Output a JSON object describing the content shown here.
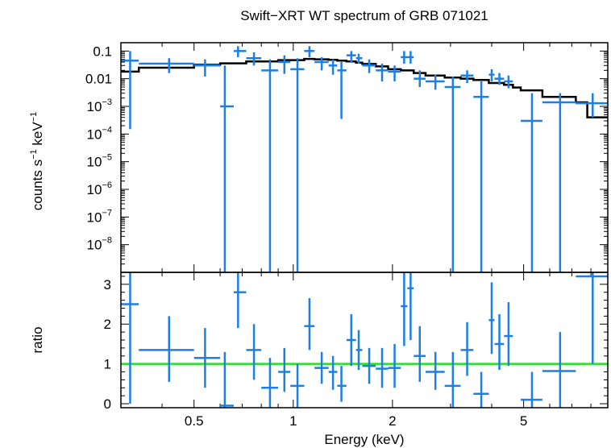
{
  "chart_data": [
    {
      "type": "scatter",
      "title": "Swift−XRT WT spectrum of GRB 071021",
      "ylabel": "counts s⁻¹ keV⁻¹",
      "ylabel_parts": [
        "counts s",
        "−1",
        " keV",
        "−1"
      ],
      "xscale": "log",
      "yscale": "log",
      "xlim": [
        0.3,
        9.0
      ],
      "ylim": [
        1e-09,
        0.2
      ],
      "yticks": [
        {
          "v": 0.1,
          "label": "0.1"
        },
        {
          "v": 0.01,
          "label": "0.01"
        },
        {
          "v": 0.001,
          "base": "10",
          "exp": "−3"
        },
        {
          "v": 0.0001,
          "base": "10",
          "exp": "−4"
        },
        {
          "v": 1e-05,
          "base": "10",
          "exp": "−5"
        },
        {
          "v": 1e-06,
          "base": "10",
          "exp": "−6"
        },
        {
          "v": 1e-07,
          "base": "10",
          "exp": "−7"
        },
        {
          "v": 1e-08,
          "base": "10",
          "exp": "−8"
        }
      ],
      "data_color": "#1e7fe0",
      "model_color": "#000000",
      "points": [
        {
          "x": 0.32,
          "xlo": 0.3,
          "xhi": 0.34,
          "y": 0.045,
          "ylo": 0.00015,
          "yhi": 0.1
        },
        {
          "x": 0.42,
          "xlo": 0.34,
          "xhi": 0.5,
          "y": 0.035,
          "ylo": 0.016,
          "yhi": 0.055
        },
        {
          "x": 0.54,
          "xlo": 0.5,
          "xhi": 0.6,
          "y": 0.03,
          "ylo": 0.012,
          "yhi": 0.05
        },
        {
          "x": 0.62,
          "xlo": 0.6,
          "xhi": 0.66,
          "y": 0.001,
          "ylo": 1e-09,
          "yhi": 0.03
        },
        {
          "x": 0.68,
          "xlo": 0.66,
          "xhi": 0.72,
          "y": 0.1,
          "ylo": 0.06,
          "yhi": 0.15
        },
        {
          "x": 0.76,
          "xlo": 0.72,
          "xhi": 0.8,
          "y": 0.055,
          "ylo": 0.03,
          "yhi": 0.09
        },
        {
          "x": 0.85,
          "xlo": 0.8,
          "xhi": 0.9,
          "y": 0.02,
          "ylo": 1e-09,
          "yhi": 0.05
        },
        {
          "x": 0.94,
          "xlo": 0.9,
          "xhi": 0.98,
          "y": 0.04,
          "ylo": 0.015,
          "yhi": 0.07
        },
        {
          "x": 1.03,
          "xlo": 0.98,
          "xhi": 1.08,
          "y": 0.022,
          "ylo": 1e-09,
          "yhi": 0.055
        },
        {
          "x": 1.12,
          "xlo": 1.08,
          "xhi": 1.16,
          "y": 0.1,
          "ylo": 0.06,
          "yhi": 0.15
        },
        {
          "x": 1.22,
          "xlo": 1.16,
          "xhi": 1.28,
          "y": 0.04,
          "ylo": 0.02,
          "yhi": 0.06
        },
        {
          "x": 1.32,
          "xlo": 1.28,
          "xhi": 1.36,
          "y": 0.03,
          "ylo": 0.014,
          "yhi": 0.05
        },
        {
          "x": 1.4,
          "xlo": 1.36,
          "xhi": 1.45,
          "y": 0.02,
          "ylo": 0.00035,
          "yhi": 0.04
        },
        {
          "x": 1.5,
          "xlo": 1.45,
          "xhi": 1.55,
          "y": 0.07,
          "ylo": 0.04,
          "yhi": 0.1
        },
        {
          "x": 1.58,
          "xlo": 1.55,
          "xhi": 1.62,
          "y": 0.055,
          "ylo": 0.035,
          "yhi": 0.08
        },
        {
          "x": 1.7,
          "xlo": 1.62,
          "xhi": 1.78,
          "y": 0.03,
          "ylo": 0.016,
          "yhi": 0.05
        },
        {
          "x": 1.86,
          "xlo": 1.78,
          "xhi": 1.94,
          "y": 0.02,
          "ylo": 0.008,
          "yhi": 0.035
        },
        {
          "x": 2.03,
          "xlo": 1.94,
          "xhi": 2.12,
          "y": 0.018,
          "ylo": 0.008,
          "yhi": 0.03
        },
        {
          "x": 2.17,
          "xlo": 2.12,
          "xhi": 2.22,
          "y": 0.06,
          "ylo": 0.035,
          "yhi": 0.1
        },
        {
          "x": 2.27,
          "xlo": 2.22,
          "xhi": 2.32,
          "y": 0.06,
          "ylo": 0.035,
          "yhi": 0.1
        },
        {
          "x": 2.42,
          "xlo": 2.32,
          "xhi": 2.52,
          "y": 0.01,
          "ylo": 0.005,
          "yhi": 0.02
        },
        {
          "x": 2.7,
          "xlo": 2.52,
          "xhi": 2.88,
          "y": 0.008,
          "ylo": 0.004,
          "yhi": 0.014
        },
        {
          "x": 3.05,
          "xlo": 2.88,
          "xhi": 3.22,
          "y": 0.005,
          "ylo": 1e-09,
          "yhi": 0.012
        },
        {
          "x": 3.37,
          "xlo": 3.22,
          "xhi": 3.52,
          "y": 0.013,
          "ylo": 0.007,
          "yhi": 0.02
        },
        {
          "x": 3.72,
          "xlo": 3.52,
          "xhi": 3.92,
          "y": 0.0022,
          "ylo": 1e-09,
          "yhi": 0.008
        },
        {
          "x": 4.0,
          "xlo": 3.92,
          "xhi": 4.08,
          "y": 0.014,
          "ylo": 0.008,
          "yhi": 0.022
        },
        {
          "x": 4.22,
          "xlo": 4.08,
          "xhi": 4.36,
          "y": 0.01,
          "ylo": 0.006,
          "yhi": 0.016
        },
        {
          "x": 4.5,
          "xlo": 4.36,
          "xhi": 4.64,
          "y": 0.008,
          "ylo": 0.0045,
          "yhi": 0.013
        },
        {
          "x": 5.3,
          "xlo": 4.9,
          "xhi": 5.7,
          "y": 0.0003,
          "ylo": 1e-09,
          "yhi": 0.003
        },
        {
          "x": 6.45,
          "xlo": 5.7,
          "xhi": 7.2,
          "y": 0.0014,
          "ylo": 1e-09,
          "yhi": 0.003
        },
        {
          "x": 8.1,
          "xlo": 7.2,
          "xhi": 9.0,
          "y": 0.0013,
          "ylo": 0.0004,
          "yhi": 0.003
        }
      ],
      "model": [
        [
          0.3,
          0.018
        ],
        [
          0.34,
          0.025
        ],
        [
          0.5,
          0.032
        ],
        [
          0.6,
          0.036
        ],
        [
          0.72,
          0.042
        ],
        [
          0.9,
          0.047
        ],
        [
          1.08,
          0.052
        ],
        [
          1.16,
          0.05
        ],
        [
          1.28,
          0.048
        ],
        [
          1.36,
          0.045
        ],
        [
          1.45,
          0.042
        ],
        [
          1.55,
          0.038
        ],
        [
          1.62,
          0.034
        ],
        [
          1.78,
          0.028
        ],
        [
          1.94,
          0.022
        ],
        [
          2.12,
          0.02
        ],
        [
          2.32,
          0.016
        ],
        [
          2.52,
          0.013
        ],
        [
          2.88,
          0.011
        ],
        [
          3.22,
          0.01
        ],
        [
          3.52,
          0.009
        ],
        [
          3.92,
          0.007
        ],
        [
          4.36,
          0.006
        ],
        [
          4.64,
          0.0048
        ],
        [
          4.9,
          0.0038
        ],
        [
          5.7,
          0.0022
        ],
        [
          7.2,
          0.0014
        ],
        [
          7.8,
          0.0004
        ],
        [
          9.0,
          0.0004
        ]
      ]
    },
    {
      "type": "scatter",
      "title": "",
      "xlabel": "Energy (keV)",
      "ylabel": "ratio",
      "xscale": "log",
      "xlim": [
        0.3,
        9.0
      ],
      "ylim": [
        -0.1,
        3.3
      ],
      "xticks": [
        {
          "v": 0.5,
          "label": "0.5"
        },
        {
          "v": 1,
          "label": "1"
        },
        {
          "v": 2,
          "label": "2"
        },
        {
          "v": 5,
          "label": "5"
        }
      ],
      "yticks": [
        {
          "v": 0,
          "label": "0"
        },
        {
          "v": 1,
          "label": "1"
        },
        {
          "v": 2,
          "label": "2"
        },
        {
          "v": 3,
          "label": "3"
        }
      ],
      "reference_line": {
        "y": 1,
        "color": "#22e022"
      },
      "data_color": "#1e7fe0",
      "points": [
        {
          "x": 0.32,
          "xlo": 0.3,
          "xhi": 0.34,
          "y": 2.5,
          "ylo": 0.0,
          "yhi": 3.3
        },
        {
          "x": 0.42,
          "xlo": 0.34,
          "xhi": 0.5,
          "y": 1.35,
          "ylo": 0.55,
          "yhi": 2.2
        },
        {
          "x": 0.54,
          "xlo": 0.5,
          "xhi": 0.6,
          "y": 1.15,
          "ylo": 0.4,
          "yhi": 1.9
        },
        {
          "x": 0.62,
          "xlo": 0.6,
          "xhi": 0.66,
          "y": -0.05,
          "ylo": -0.1,
          "yhi": 1.3
        },
        {
          "x": 0.68,
          "xlo": 0.66,
          "xhi": 0.72,
          "y": 2.8,
          "ylo": 1.9,
          "yhi": 3.3
        },
        {
          "x": 0.76,
          "xlo": 0.72,
          "xhi": 0.8,
          "y": 1.35,
          "ylo": 0.6,
          "yhi": 2.0
        },
        {
          "x": 0.85,
          "xlo": 0.8,
          "xhi": 0.9,
          "y": 0.4,
          "ylo": -0.1,
          "yhi": 1.15
        },
        {
          "x": 0.94,
          "xlo": 0.9,
          "xhi": 0.98,
          "y": 0.8,
          "ylo": 0.3,
          "yhi": 1.4
        },
        {
          "x": 1.03,
          "xlo": 0.98,
          "xhi": 1.08,
          "y": 0.45,
          "ylo": -0.1,
          "yhi": 1.0
        },
        {
          "x": 1.12,
          "xlo": 1.08,
          "xhi": 1.16,
          "y": 1.95,
          "ylo": 1.35,
          "yhi": 2.65
        },
        {
          "x": 1.22,
          "xlo": 1.16,
          "xhi": 1.28,
          "y": 0.9,
          "ylo": 0.5,
          "yhi": 1.3
        },
        {
          "x": 1.32,
          "xlo": 1.28,
          "xhi": 1.36,
          "y": 0.8,
          "ylo": 0.35,
          "yhi": 1.2
        },
        {
          "x": 1.4,
          "xlo": 1.36,
          "xhi": 1.45,
          "y": 0.45,
          "ylo": 0.05,
          "yhi": 0.95
        },
        {
          "x": 1.5,
          "xlo": 1.45,
          "xhi": 1.55,
          "y": 1.6,
          "ylo": 0.95,
          "yhi": 2.25
        },
        {
          "x": 1.58,
          "xlo": 1.55,
          "xhi": 1.62,
          "y": 1.35,
          "ylo": 0.85,
          "yhi": 1.85
        },
        {
          "x": 1.7,
          "xlo": 1.62,
          "xhi": 1.78,
          "y": 0.95,
          "ylo": 0.5,
          "yhi": 1.4
        },
        {
          "x": 1.86,
          "xlo": 1.78,
          "xhi": 1.94,
          "y": 0.88,
          "ylo": 0.4,
          "yhi": 1.4
        },
        {
          "x": 2.03,
          "xlo": 1.94,
          "xhi": 2.12,
          "y": 0.9,
          "ylo": 0.4,
          "yhi": 1.5
        },
        {
          "x": 2.17,
          "xlo": 2.12,
          "xhi": 2.22,
          "y": 2.45,
          "ylo": 1.45,
          "yhi": 3.3
        },
        {
          "x": 2.27,
          "xlo": 2.22,
          "xhi": 2.32,
          "y": 2.9,
          "ylo": 1.6,
          "yhi": 3.3
        },
        {
          "x": 2.42,
          "xlo": 2.32,
          "xhi": 2.52,
          "y": 1.2,
          "ylo": 0.55,
          "yhi": 1.95
        },
        {
          "x": 2.7,
          "xlo": 2.52,
          "xhi": 2.88,
          "y": 0.8,
          "ylo": 0.35,
          "yhi": 1.3
        },
        {
          "x": 3.05,
          "xlo": 2.88,
          "xhi": 3.22,
          "y": 0.45,
          "ylo": -0.1,
          "yhi": 1.3
        },
        {
          "x": 3.37,
          "xlo": 3.22,
          "xhi": 3.52,
          "y": 1.35,
          "ylo": 0.7,
          "yhi": 2.05
        },
        {
          "x": 3.72,
          "xlo": 3.52,
          "xhi": 3.92,
          "y": 0.25,
          "ylo": -0.1,
          "yhi": 0.8
        },
        {
          "x": 4.0,
          "xlo": 3.92,
          "xhi": 4.08,
          "y": 2.1,
          "ylo": 1.25,
          "yhi": 3.05
        },
        {
          "x": 4.22,
          "xlo": 4.08,
          "xhi": 4.36,
          "y": 1.5,
          "ylo": 0.85,
          "yhi": 2.25
        },
        {
          "x": 4.5,
          "xlo": 4.36,
          "xhi": 4.64,
          "y": 1.7,
          "ylo": 0.95,
          "yhi": 2.55
        },
        {
          "x": 5.3,
          "xlo": 4.9,
          "xhi": 5.7,
          "y": 0.1,
          "ylo": -0.1,
          "yhi": 0.8
        },
        {
          "x": 6.45,
          "xlo": 5.7,
          "xhi": 7.2,
          "y": 0.82,
          "ylo": -0.1,
          "yhi": 1.8
        },
        {
          "x": 8.1,
          "xlo": 7.2,
          "xhi": 9.0,
          "y": 3.2,
          "ylo": 1.0,
          "yhi": 3.3
        }
      ]
    }
  ]
}
